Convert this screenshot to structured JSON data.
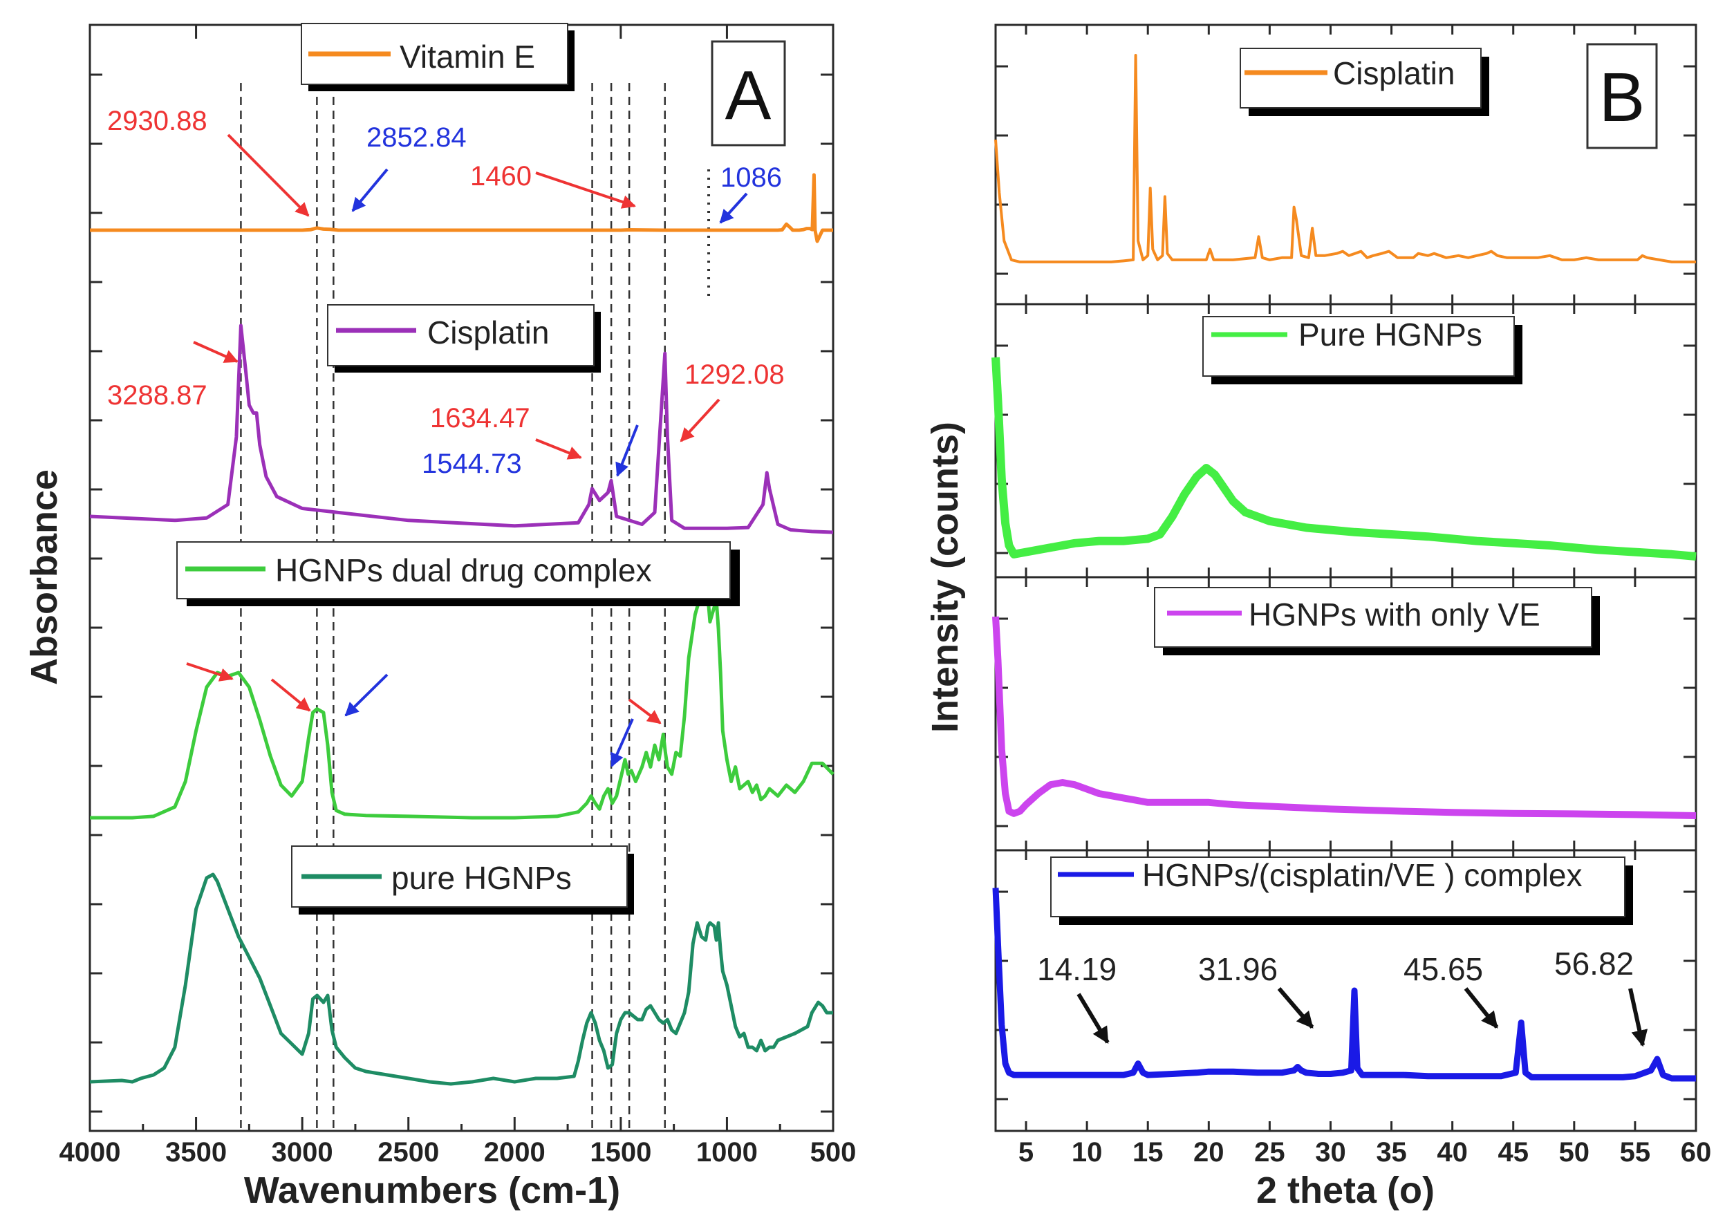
{
  "chart_data": [
    {
      "type": "line",
      "panel_label": "A",
      "title": "",
      "xlabel": "Wavenumbers (cm-1)",
      "ylabel": "Absorbance",
      "x_reversed": true,
      "xlim": [
        4000,
        500
      ],
      "x_ticks": [
        4000,
        3500,
        3000,
        2500,
        2000,
        1500,
        1000,
        500
      ],
      "reference_lines_x": [
        3288.87,
        2930.88,
        2852.84,
        1634.47,
        1544.73,
        1460,
        1292.08,
        1086
      ],
      "series": [
        {
          "name": "Vitamin E",
          "color": "#f58a1f",
          "x": [
            4000,
            3000,
            2960,
            2931,
            2900,
            2870,
            2853,
            2830,
            2700,
            2000,
            1500,
            1460,
            1300,
            1000,
            760,
            740,
            720,
            700,
            690,
            680,
            660,
            640,
            625,
            610,
            598,
            590,
            585,
            575,
            550,
            500
          ],
          "values": [
            0.0,
            0.0,
            0.05,
            0.2,
            0.1,
            0.08,
            0.05,
            0.0,
            0.0,
            0.0,
            0.0,
            0.03,
            0.0,
            0.0,
            0.0,
            0.03,
            0.55,
            0.2,
            0.0,
            0.0,
            0.0,
            0.05,
            0.15,
            0.15,
            0.05,
            5.0,
            0.0,
            -1.0,
            0.0,
            0.0
          ]
        },
        {
          "name": "Cisplatin",
          "color": "#9b30b8",
          "x": [
            4000,
            3600,
            3450,
            3350,
            3310,
            3289,
            3265,
            3250,
            3230,
            3215,
            3200,
            3170,
            3120,
            3000,
            2500,
            2000,
            1700,
            1650,
            1635,
            1600,
            1560,
            1545,
            1520,
            1400,
            1340,
            1310,
            1292,
            1280,
            1260,
            1200,
            1000,
            900,
            830,
            812,
            800,
            760,
            700,
            600,
            500
          ],
          "values": [
            0.2,
            0.15,
            0.18,
            0.35,
            1.2,
            2.6,
            2.0,
            1.6,
            1.5,
            1.5,
            1.1,
            0.7,
            0.45,
            0.3,
            0.15,
            0.08,
            0.12,
            0.35,
            0.55,
            0.4,
            0.5,
            0.65,
            0.2,
            0.1,
            0.25,
            1.5,
            2.25,
            1.2,
            0.15,
            0.05,
            0.05,
            0.06,
            0.35,
            0.75,
            0.55,
            0.1,
            0.03,
            0.01,
            0.0
          ]
        },
        {
          "name": "HGNPs dual drug complex",
          "color": "#3dcc3d",
          "x": [
            4000,
            3800,
            3700,
            3600,
            3550,
            3500,
            3450,
            3400,
            3350,
            3300,
            3250,
            3200,
            3150,
            3100,
            3050,
            3000,
            2970,
            2950,
            2930,
            2900,
            2880,
            2860,
            2840,
            2800,
            2700,
            2500,
            2200,
            2000,
            1800,
            1700,
            1660,
            1640,
            1620,
            1600,
            1580,
            1560,
            1540,
            1520,
            1500,
            1480,
            1465,
            1450,
            1430,
            1400,
            1380,
            1360,
            1340,
            1320,
            1300,
            1290,
            1280,
            1260,
            1240,
            1220,
            1200,
            1180,
            1150,
            1120,
            1100,
            1090,
            1080,
            1070,
            1050,
            1040,
            1030,
            1020,
            1000,
            980,
            960,
            940,
            900,
            880,
            860,
            840,
            820,
            800,
            760,
            720,
            680,
            640,
            600,
            550,
            500
          ],
          "values": [
            0.0,
            0.0,
            0.02,
            0.15,
            0.5,
            1.2,
            1.8,
            2.0,
            1.95,
            2.0,
            1.8,
            1.35,
            0.85,
            0.45,
            0.3,
            0.5,
            1.1,
            1.45,
            1.5,
            1.45,
            1.0,
            0.35,
            0.1,
            0.05,
            0.03,
            0.02,
            0.0,
            0.0,
            0.02,
            0.08,
            0.2,
            0.3,
            0.2,
            0.12,
            0.3,
            0.4,
            0.2,
            0.3,
            0.55,
            0.8,
            0.6,
            0.65,
            0.5,
            0.7,
            0.9,
            0.7,
            1.0,
            0.8,
            1.15,
            0.9,
            0.7,
            0.6,
            0.9,
            0.85,
            1.4,
            2.2,
            2.8,
            3.1,
            3.1,
            3.05,
            2.7,
            2.8,
            3.0,
            2.6,
            2.0,
            1.2,
            0.8,
            0.5,
            0.7,
            0.4,
            0.5,
            0.35,
            0.45,
            0.25,
            0.3,
            0.4,
            0.3,
            0.45,
            0.35,
            0.5,
            0.75,
            0.75,
            0.6
          ]
        },
        {
          "name": "pure HGNPs",
          "color": "#1e8c64",
          "x": [
            4000,
            3850,
            3800,
            3760,
            3700,
            3650,
            3600,
            3550,
            3500,
            3450,
            3420,
            3400,
            3350,
            3300,
            3250,
            3200,
            3150,
            3100,
            3050,
            3000,
            2970,
            2950,
            2930,
            2900,
            2880,
            2860,
            2840,
            2800,
            2750,
            2700,
            2600,
            2500,
            2400,
            2300,
            2200,
            2100,
            2000,
            1900,
            1800,
            1720,
            1700,
            1680,
            1660,
            1640,
            1620,
            1600,
            1580,
            1560,
            1540,
            1520,
            1500,
            1480,
            1460,
            1420,
            1400,
            1380,
            1360,
            1340,
            1320,
            1300,
            1280,
            1260,
            1240,
            1220,
            1200,
            1180,
            1160,
            1140,
            1120,
            1100,
            1090,
            1080,
            1060,
            1050,
            1040,
            1030,
            1020,
            1000,
            980,
            960,
            940,
            920,
            900,
            880,
            860,
            840,
            820,
            800,
            780,
            760,
            720,
            680,
            650,
            620,
            600,
            570,
            550,
            530,
            500
          ],
          "values": [
            0.0,
            0.02,
            0.0,
            0.05,
            0.1,
            0.2,
            0.5,
            1.4,
            2.5,
            2.95,
            3.0,
            2.9,
            2.5,
            2.1,
            1.8,
            1.5,
            1.1,
            0.7,
            0.55,
            0.4,
            0.7,
            1.2,
            1.25,
            1.15,
            1.25,
            0.75,
            0.5,
            0.35,
            0.2,
            0.15,
            0.1,
            0.05,
            0.0,
            -0.03,
            0.0,
            0.05,
            0.0,
            0.05,
            0.05,
            0.08,
            0.3,
            0.6,
            0.85,
            1.0,
            0.85,
            0.6,
            0.45,
            0.2,
            0.25,
            0.7,
            0.9,
            1.0,
            1.0,
            0.9,
            0.9,
            1.05,
            1.1,
            1.0,
            0.9,
            0.85,
            0.9,
            0.75,
            0.7,
            0.85,
            1.0,
            1.3,
            2.0,
            2.3,
            2.1,
            2.05,
            2.25,
            2.3,
            2.25,
            2.05,
            2.3,
            1.9,
            1.6,
            1.4,
            1.1,
            0.8,
            0.65,
            0.7,
            0.5,
            0.5,
            0.45,
            0.6,
            0.45,
            0.5,
            0.5,
            0.6,
            0.65,
            0.7,
            0.75,
            0.8,
            1.0,
            1.15,
            1.1,
            1.0,
            1.0
          ]
        }
      ],
      "legend": [
        "Vitamin E",
        "Cisplatin",
        "HGNPs dual drug complex",
        "pure HGNPs"
      ],
      "annotations": {
        "vitamin_e": [
          {
            "text": "2930.88",
            "color": "#ee3333"
          },
          {
            "text": "2852.84",
            "color": "#2233dd"
          },
          {
            "text": "1460",
            "color": "#ee3333"
          },
          {
            "text": "1086",
            "color": "#2233dd"
          }
        ],
        "cisplatin": [
          {
            "text": "3288.87",
            "color": "#ee3333"
          },
          {
            "text": "1634.47",
            "color": "#ee3333"
          },
          {
            "text": "1544.73",
            "color": "#2233dd"
          },
          {
            "text": "1292.08",
            "color": "#ee3333"
          }
        ]
      }
    },
    {
      "type": "line",
      "panel_label": "B",
      "title": "",
      "xlabel": "2 theta (o)",
      "ylabel": "Intensity (counts)",
      "xlim": [
        2.5,
        60
      ],
      "x_ticks": [
        5,
        10,
        15,
        20,
        25,
        30,
        35,
        40,
        45,
        50,
        55,
        60
      ],
      "series": [
        {
          "name": "Cisplatin",
          "color": "#f58a1f",
          "x": [
            2.5,
            2.8,
            3.2,
            3.8,
            4.5,
            6,
            8,
            10,
            12,
            13,
            13.8,
            14.0,
            14.2,
            14.6,
            15.0,
            15.2,
            15.4,
            15.8,
            16.2,
            16.4,
            16.6,
            17,
            18,
            19.8,
            20.1,
            20.4,
            21,
            22,
            23.8,
            24.1,
            24.4,
            25,
            26,
            26.8,
            27.0,
            27.2,
            27.6,
            28.2,
            28.5,
            28.8,
            29.5,
            30.5,
            31,
            31.5,
            32,
            32.5,
            33,
            33.5,
            34.2,
            34.8,
            35.5,
            36.8,
            37.2,
            38,
            38.5,
            39.5,
            40.5,
            41.3,
            42,
            42.8,
            43.2,
            43.7,
            44.5,
            45.5,
            46.3,
            47,
            48,
            49,
            50,
            51,
            52,
            53,
            54,
            55.2,
            55.6,
            56,
            57,
            58,
            59,
            60
          ],
          "values": [
            0.6,
            0.35,
            0.12,
            0.03,
            0.02,
            0.02,
            0.02,
            0.02,
            0.02,
            0.025,
            0.03,
            1.0,
            0.12,
            0.03,
            0.05,
            0.37,
            0.08,
            0.03,
            0.05,
            0.33,
            0.06,
            0.03,
            0.03,
            0.03,
            0.08,
            0.03,
            0.03,
            0.03,
            0.04,
            0.14,
            0.04,
            0.03,
            0.04,
            0.04,
            0.28,
            0.22,
            0.05,
            0.04,
            0.18,
            0.05,
            0.05,
            0.06,
            0.07,
            0.05,
            0.06,
            0.07,
            0.04,
            0.05,
            0.06,
            0.07,
            0.04,
            0.04,
            0.06,
            0.05,
            0.06,
            0.04,
            0.05,
            0.04,
            0.05,
            0.06,
            0.07,
            0.05,
            0.04,
            0.04,
            0.04,
            0.04,
            0.05,
            0.03,
            0.03,
            0.04,
            0.03,
            0.03,
            0.03,
            0.03,
            0.05,
            0.04,
            0.03,
            0.02,
            0.02,
            0.02
          ]
        },
        {
          "name": "Pure HGNPs",
          "color": "#44ee44",
          "x": [
            2.5,
            2.7,
            3.0,
            3.3,
            3.6,
            4.0,
            5,
            7,
            9,
            11,
            13,
            15,
            16,
            17,
            18,
            19,
            19.8,
            20.5,
            21,
            22,
            23,
            24,
            25,
            26,
            28,
            30,
            32,
            35,
            38,
            40,
            42,
            45,
            48,
            50,
            52,
            55,
            58,
            60
          ],
          "values": [
            0.9,
            0.7,
            0.35,
            0.15,
            0.05,
            0.01,
            0.02,
            0.04,
            0.06,
            0.07,
            0.07,
            0.08,
            0.1,
            0.18,
            0.28,
            0.36,
            0.4,
            0.37,
            0.33,
            0.25,
            0.2,
            0.18,
            0.16,
            0.15,
            0.13,
            0.12,
            0.11,
            0.1,
            0.09,
            0.08,
            0.07,
            0.06,
            0.05,
            0.04,
            0.03,
            0.02,
            0.01,
            0.0
          ]
        },
        {
          "name": "HGNPs with only VE",
          "color": "#cc44ee",
          "x": [
            2.5,
            2.7,
            3.0,
            3.3,
            3.6,
            4.0,
            4.5,
            5,
            6,
            7,
            8,
            9,
            10,
            11,
            12,
            13,
            14,
            15,
            16,
            18,
            20,
            22,
            24,
            26,
            28,
            30,
            33,
            36,
            40,
            45,
            50,
            55,
            60
          ],
          "values": [
            0.9,
            0.7,
            0.3,
            0.1,
            0.02,
            0.01,
            0.02,
            0.05,
            0.1,
            0.14,
            0.15,
            0.14,
            0.12,
            0.1,
            0.09,
            0.08,
            0.07,
            0.06,
            0.06,
            0.06,
            0.06,
            0.05,
            0.045,
            0.04,
            0.035,
            0.03,
            0.025,
            0.02,
            0.015,
            0.01,
            0.008,
            0.005,
            0.0
          ]
        },
        {
          "name": "HGNPs/(cisplatin/VE ) complex",
          "color": "#1a1ae6",
          "x": [
            2.5,
            2.7,
            3.0,
            3.3,
            3.6,
            4.0,
            5,
            8,
            10,
            12,
            13,
            13.8,
            14.2,
            14.6,
            15,
            17,
            19,
            20,
            22,
            24,
            26,
            27,
            27.3,
            27.6,
            28,
            29,
            30,
            31,
            31.7,
            31.96,
            32.2,
            32.6,
            34,
            36,
            38,
            40,
            42,
            44,
            45.2,
            45.65,
            46.0,
            46.5,
            48,
            50,
            52,
            54,
            55,
            56.3,
            56.82,
            57.3,
            58,
            59,
            60
          ],
          "values": [
            0.85,
            0.6,
            0.25,
            0.08,
            0.04,
            0.03,
            0.03,
            0.03,
            0.03,
            0.03,
            0.03,
            0.04,
            0.08,
            0.04,
            0.03,
            0.035,
            0.04,
            0.045,
            0.045,
            0.04,
            0.04,
            0.05,
            0.065,
            0.05,
            0.04,
            0.035,
            0.035,
            0.04,
            0.05,
            0.4,
            0.06,
            0.03,
            0.03,
            0.03,
            0.025,
            0.025,
            0.025,
            0.025,
            0.04,
            0.26,
            0.04,
            0.02,
            0.02,
            0.02,
            0.02,
            0.02,
            0.025,
            0.05,
            0.1,
            0.03,
            0.015,
            0.015,
            0.015
          ]
        }
      ],
      "legend": [
        "Cisplatin",
        "Pure HGNPs",
        "HGNPs with only VE",
        "HGNPs/(cisplatin/VE ) complex"
      ],
      "annotations": [
        {
          "text": "14.19",
          "x": 14.19
        },
        {
          "text": "31.96",
          "x": 31.96
        },
        {
          "text": "45.65",
          "x": 45.65
        },
        {
          "text": "56.82",
          "x": 56.82
        }
      ]
    }
  ]
}
